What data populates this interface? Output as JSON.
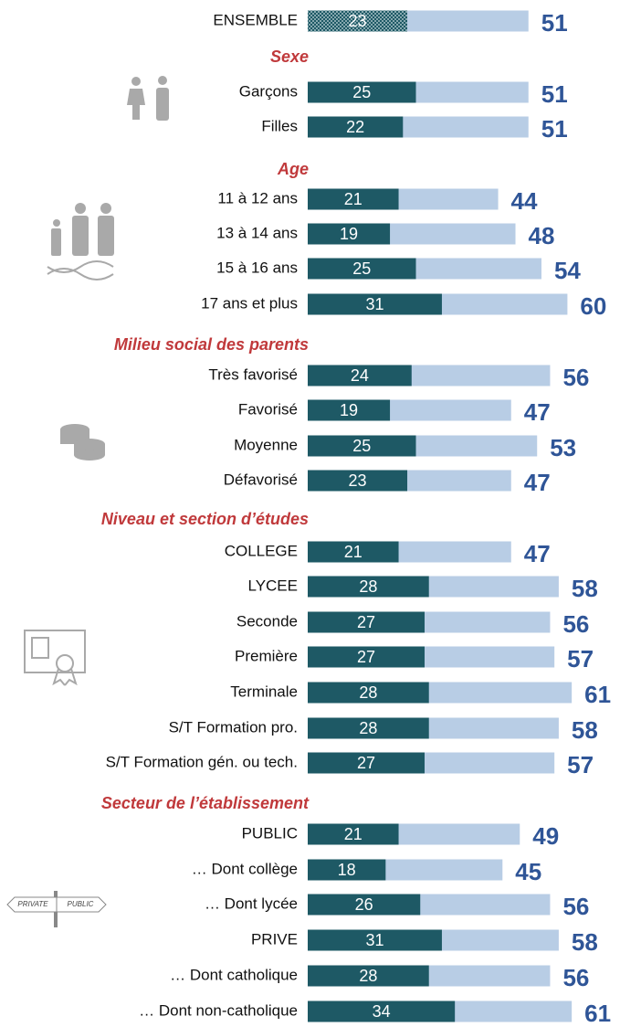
{
  "chart_data": {
    "type": "bar",
    "categories": [
      "ENSEMBLE",
      "Garçons",
      "Filles",
      "11 à 12 ans",
      "13 à 14 ans",
      "15 à 16 ans",
      "17 ans et plus",
      "Très favorisé",
      "Favorisé",
      "Moyenne",
      "Défavorisé",
      "COLLEGE",
      "LYCEE",
      "Seconde",
      "Première",
      "Terminale",
      "S/T Formation pro.",
      "S/T Formation gén. ou tech.",
      "PUBLIC",
      "… Dont collège",
      "… Dont lycée",
      "PRIVE",
      "… Dont catholique",
      "… Dont non-catholique"
    ],
    "sections": [
      "Sexe",
      "Age",
      "Milieu social des parents",
      "Niveau et section d’études",
      "Secteur de l’établissement"
    ],
    "series": [
      {
        "color": "#b8cde5",
        "values": [
          51,
          51,
          51,
          44,
          48,
          54,
          60,
          56,
          47,
          53,
          47,
          47,
          58,
          56,
          57,
          61,
          58,
          57,
          49,
          45,
          56,
          58,
          56,
          61
        ]
      },
      {
        "color": "#1e5965",
        "values": [
          23,
          25,
          22,
          21,
          19,
          25,
          31,
          24,
          19,
          25,
          23,
          21,
          28,
          27,
          27,
          28,
          28,
          27,
          21,
          18,
          26,
          31,
          28,
          34
        ]
      }
    ],
    "xlim": [
      0,
      60
    ]
  }
}
